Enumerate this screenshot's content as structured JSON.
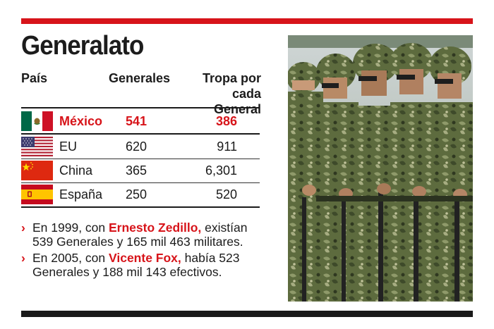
{
  "title": "Generalato",
  "table": {
    "headers": {
      "pais": "País",
      "generales": "Generales",
      "tropa_line1": "Tropa por",
      "tropa_line2": "cada General"
    },
    "rows": [
      {
        "country": "México",
        "generales": "541",
        "tropa": "386",
        "flag": "mexico-flag-icon"
      },
      {
        "country": "EU",
        "generales": "620",
        "tropa": "911",
        "flag": "usa-flag-icon"
      },
      {
        "country": "China",
        "generales": "365",
        "tropa": "6,301",
        "flag": "china-flag-icon"
      },
      {
        "country": "España",
        "generales": "250",
        "tropa": "520",
        "flag": "spain-flag-icon"
      }
    ]
  },
  "notes": [
    {
      "pre": "En 1999, con ",
      "highlight": "Ernesto Zedillo,",
      "post": " existían 539 Generales y 165 mil 463 militares."
    },
    {
      "pre": "En 2005, con ",
      "highlight": "Vicente Fox,",
      "post": " había 523 Generales y 188 mil 143 efectivos."
    }
  ],
  "colors": {
    "accent": "#d7141a",
    "text": "#1c1c1c",
    "camo_dark": "#3e4a2a",
    "camo_light": "#8f9a6a"
  },
  "photo_icon": "soldiers-photo"
}
